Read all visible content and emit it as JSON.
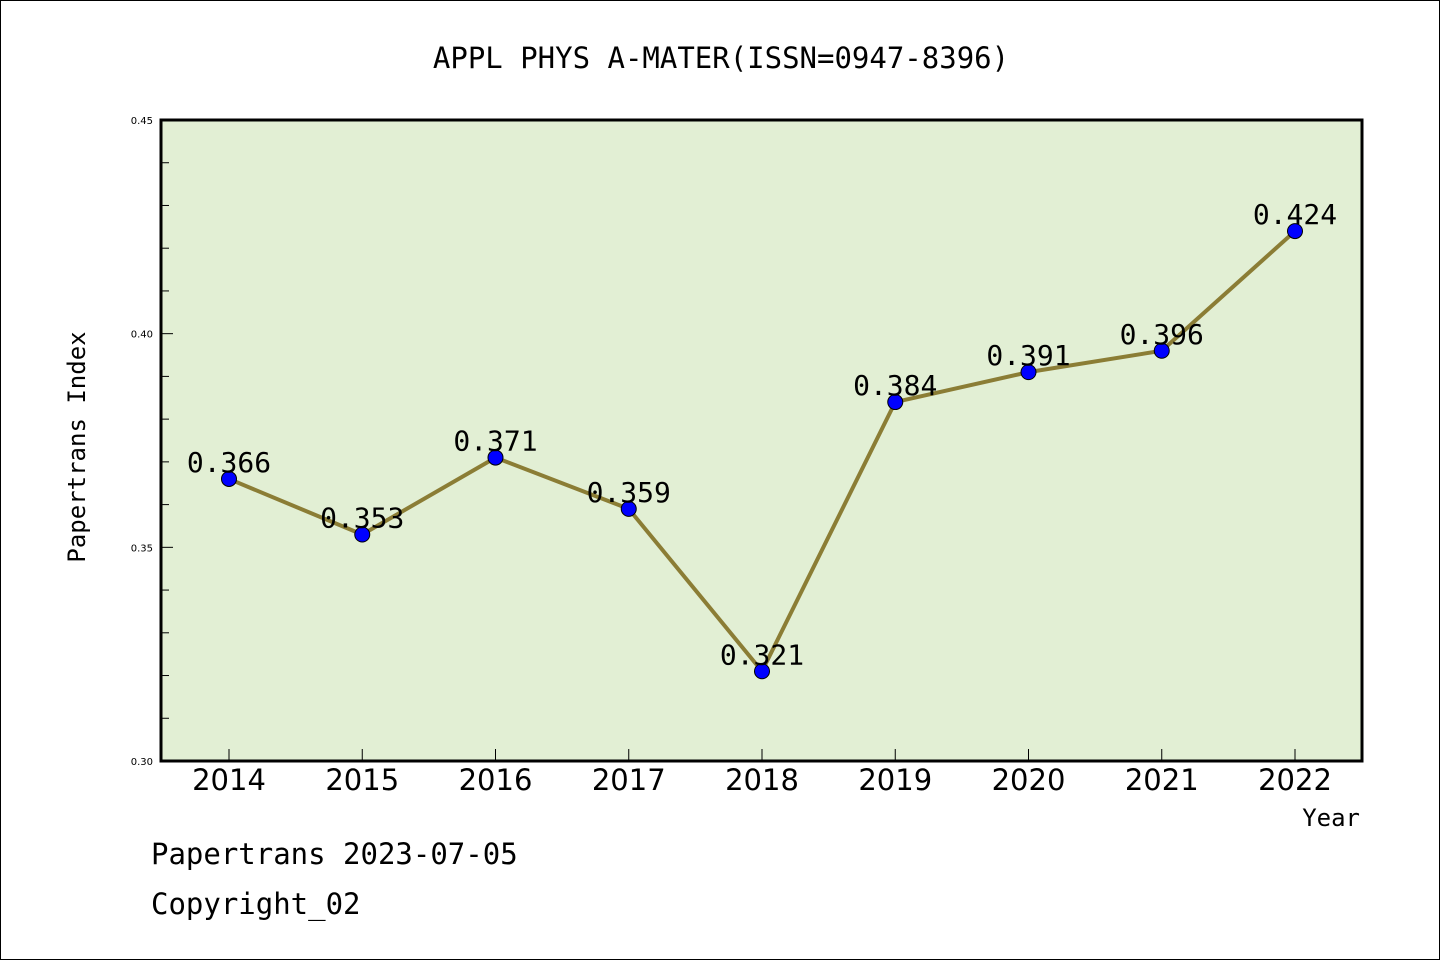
{
  "chart_data": {
    "type": "line",
    "title": "APPL PHYS A-MATER(ISSN=0947-8396)",
    "xlabel": "Year",
    "ylabel": "Papertrans Index",
    "categories": [
      "2014",
      "2015",
      "2016",
      "2017",
      "2018",
      "2019",
      "2020",
      "2021",
      "2022"
    ],
    "series": [
      {
        "values": [
          0.366,
          0.353,
          0.371,
          0.359,
          0.321,
          0.384,
          0.391,
          0.396,
          0.424
        ]
      }
    ],
    "data_labels": [
      "0.366",
      "0.353",
      "0.371",
      "0.359",
      "0.321",
      "0.384",
      "0.391",
      "0.396",
      "0.424"
    ],
    "ylim": [
      0.3,
      0.45
    ],
    "yticks": [
      "0.30",
      "0.35",
      "0.40",
      "0.45"
    ],
    "grid": false,
    "colors": {
      "plot_background": "#e2efd4",
      "line": "#8b7d35",
      "marker": "#0000ff"
    }
  },
  "footer": {
    "date_line": "Papertrans 2023-07-05",
    "copyright": "Copyright_02"
  }
}
